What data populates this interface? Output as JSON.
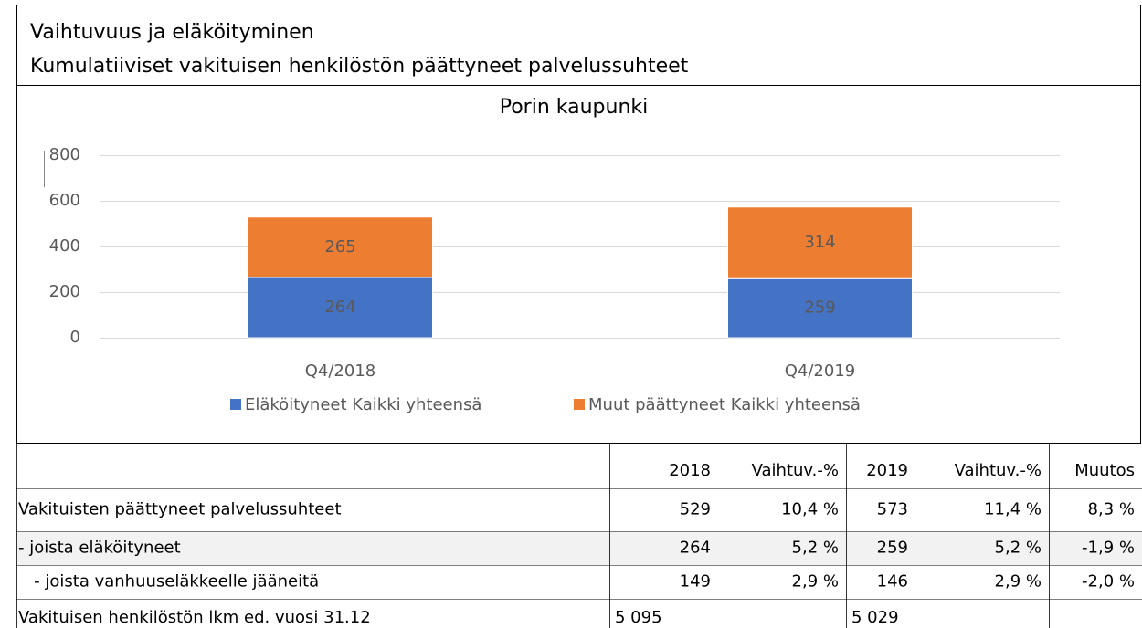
{
  "header": {
    "title": "Vaihtuvuus ja eläköityminen",
    "subtitle": "Kumulatiiviset vakituisen henkilöstön päättyneet palvelussuhteet"
  },
  "chart_data": {
    "type": "stacked_bar",
    "title": "Porin kaupunki",
    "categories": [
      "Q4/2018",
      "Q4/2019"
    ],
    "series": [
      {
        "name": "Eläköityneet Kaikki yhteensä",
        "color": "#4472c4",
        "values": [
          264,
          259
        ]
      },
      {
        "name": "Muut päättyneet Kaikki yhteensä",
        "color": "#ed7d31",
        "values": [
          265,
          314
        ]
      }
    ],
    "ylim": [
      0,
      800
    ],
    "yticks": [
      0,
      200,
      400,
      600,
      800
    ],
    "grid": true,
    "legend": "bottom"
  },
  "table": {
    "columns": [
      "2018",
      "Vaihtuv.-%",
      "2019",
      "Vaihtuv.-%",
      "Muutos"
    ],
    "rows": [
      {
        "label": "Vakituisten päättyneet palvelussuhteet",
        "cells": {
          "0": "529",
          "1": "10,4 %",
          "2": "573",
          "3": "11,4 %",
          "4": "8,3 %"
        }
      },
      {
        "label": "- joista eläköityneet",
        "cells": {
          "0": "264",
          "1": "5,2 %",
          "2": "259",
          "3": "5,2 %",
          "4": "-1,9 %"
        }
      },
      {
        "label": "   - joista vanhuuseläkkeelle jääneitä",
        "cells": {
          "0": "149",
          "1": "2,9 %",
          "2": "146",
          "3": "2,9 %",
          "4": "-2,0 %"
        }
      },
      {
        "label": "Vakituisen henkilöstön lkm ed. vuosi 31.12",
        "cells": {
          "0": "5 095",
          "2": "5 029"
        },
        "align": "left"
      }
    ]
  }
}
